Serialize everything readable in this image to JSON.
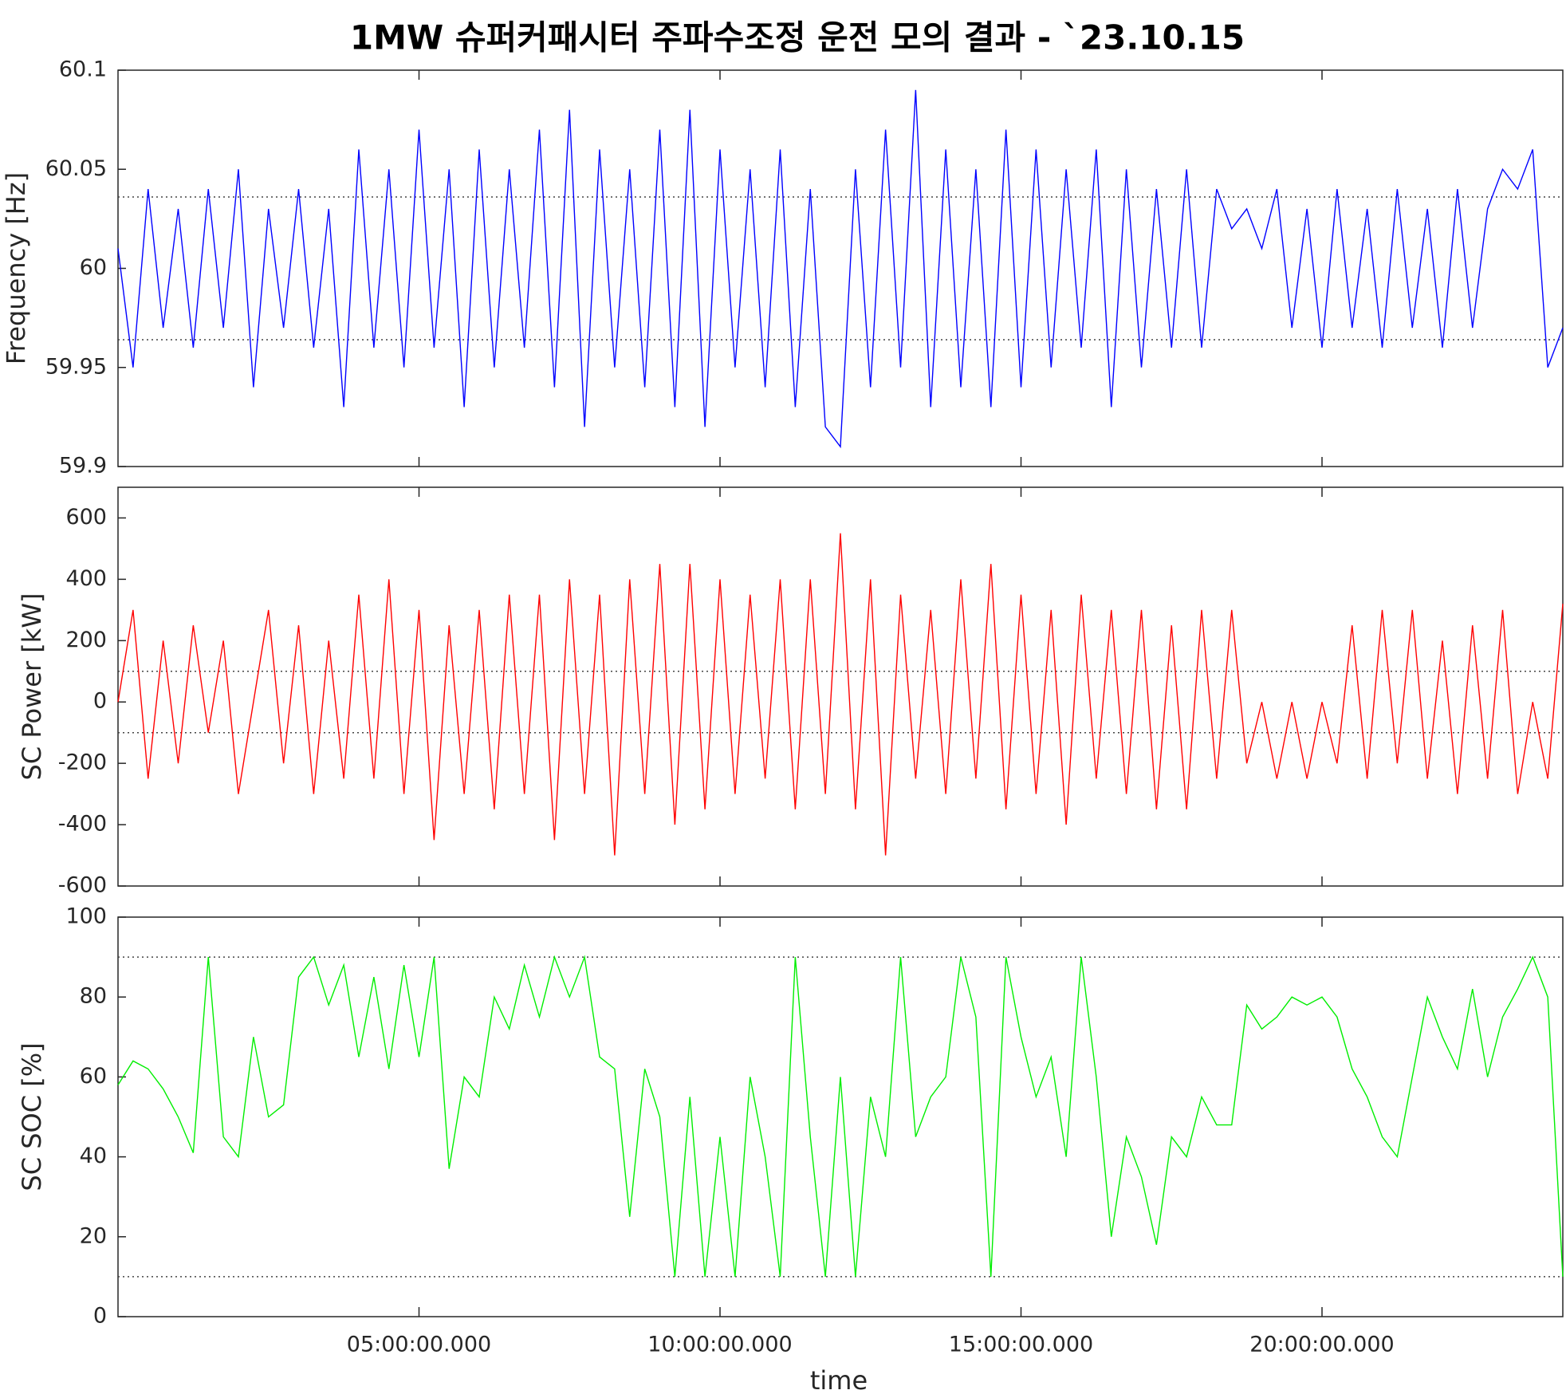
{
  "chart_data": [
    {
      "type": "line",
      "title": "1MW 슈퍼커패시터 주파수조정 운전 모의 결과 - `23.10.15",
      "ylabel": "Frequency [Hz]",
      "xlim": [
        0,
        24
      ],
      "xticks": [
        5,
        10,
        15,
        20
      ],
      "ylim": [
        59.9,
        60.1
      ],
      "yticks": [
        59.9,
        59.95,
        60,
        60.05,
        60.1
      ],
      "hlines": [
        60.036,
        59.964
      ],
      "x": [
        0,
        0.25,
        0.5,
        0.75,
        1,
        1.25,
        1.5,
        1.75,
        2,
        2.25,
        2.5,
        2.75,
        3,
        3.25,
        3.5,
        3.75,
        4,
        4.25,
        4.5,
        4.75,
        5,
        5.25,
        5.5,
        5.75,
        6,
        6.25,
        6.5,
        6.75,
        7,
        7.25,
        7.5,
        7.75,
        8,
        8.25,
        8.5,
        8.75,
        9,
        9.25,
        9.5,
        9.75,
        10,
        10.25,
        10.5,
        10.75,
        11,
        11.25,
        11.5,
        11.75,
        12,
        12.25,
        12.5,
        12.75,
        13,
        13.25,
        13.5,
        13.75,
        14,
        14.25,
        14.5,
        14.75,
        15,
        15.25,
        15.5,
        15.75,
        16,
        16.25,
        16.5,
        16.75,
        17,
        17.25,
        17.5,
        17.75,
        18,
        18.25,
        18.5,
        18.75,
        19,
        19.25,
        19.5,
        19.75,
        20,
        20.25,
        20.5,
        20.75,
        21,
        21.25,
        21.5,
        21.75,
        22,
        22.25,
        22.5,
        22.75,
        23,
        23.25,
        23.5,
        23.75,
        24
      ],
      "series": [
        {
          "color": "#0000ff",
          "values": [
            60.01,
            59.95,
            60.04,
            59.97,
            60.03,
            59.96,
            60.04,
            59.97,
            60.05,
            59.94,
            60.03,
            59.97,
            60.04,
            59.96,
            60.03,
            59.93,
            60.06,
            59.96,
            60.05,
            59.95,
            60.07,
            59.96,
            60.05,
            59.93,
            60.06,
            59.95,
            60.05,
            59.96,
            60.07,
            59.94,
            60.08,
            59.92,
            60.06,
            59.95,
            60.05,
            59.94,
            60.07,
            59.93,
            60.08,
            59.92,
            60.06,
            59.95,
            60.05,
            59.94,
            60.06,
            59.93,
            60.04,
            59.92,
            59.91,
            60.05,
            59.94,
            60.07,
            59.95,
            60.09,
            59.93,
            60.06,
            59.94,
            60.05,
            59.93,
            60.07,
            59.94,
            60.06,
            59.95,
            60.05,
            59.96,
            60.06,
            59.93,
            60.05,
            59.95,
            60.04,
            59.96,
            60.05,
            59.96,
            60.04,
            60.02,
            60.03,
            60.01,
            60.04,
            59.97,
            60.03,
            59.96,
            60.04,
            59.97,
            60.03,
            59.96,
            60.04,
            59.97,
            60.03,
            59.96,
            60.04,
            59.97,
            60.03,
            60.05,
            60.04,
            60.06,
            59.95,
            59.97
          ]
        }
      ]
    },
    {
      "type": "line",
      "ylabel": "SC Power [kW]",
      "xlim": [
        0,
        24
      ],
      "xticks": [
        5,
        10,
        15,
        20
      ],
      "ylim": [
        -600,
        700
      ],
      "yticks": [
        -600,
        -400,
        -200,
        0,
        200,
        400,
        600
      ],
      "hlines": [
        100,
        -100
      ],
      "x": [
        0,
        0.25,
        0.5,
        0.75,
        1,
        1.25,
        1.5,
        1.75,
        2,
        2.25,
        2.5,
        2.75,
        3,
        3.25,
        3.5,
        3.75,
        4,
        4.25,
        4.5,
        4.75,
        5,
        5.25,
        5.5,
        5.75,
        6,
        6.25,
        6.5,
        6.75,
        7,
        7.25,
        7.5,
        7.75,
        8,
        8.25,
        8.5,
        8.75,
        9,
        9.25,
        9.5,
        9.75,
        10,
        10.25,
        10.5,
        10.75,
        11,
        11.25,
        11.5,
        11.75,
        12,
        12.25,
        12.5,
        12.75,
        13,
        13.25,
        13.5,
        13.75,
        14,
        14.25,
        14.5,
        14.75,
        15,
        15.25,
        15.5,
        15.75,
        16,
        16.25,
        16.5,
        16.75,
        17,
        17.25,
        17.5,
        17.75,
        18,
        18.25,
        18.5,
        18.75,
        19,
        19.25,
        19.5,
        19.75,
        20,
        20.25,
        20.5,
        20.75,
        21,
        21.25,
        21.5,
        21.75,
        22,
        22.25,
        22.5,
        22.75,
        23,
        23.25,
        23.5,
        23.75,
        24
      ],
      "series": [
        {
          "color": "#ff0000",
          "values": [
            0,
            300,
            -250,
            200,
            -200,
            250,
            -100,
            200,
            -300,
            0,
            300,
            -200,
            250,
            -300,
            200,
            -250,
            350,
            -250,
            400,
            -300,
            300,
            -450,
            250,
            -300,
            300,
            -350,
            350,
            -300,
            350,
            -450,
            400,
            -300,
            350,
            -500,
            400,
            -300,
            450,
            -400,
            450,
            -350,
            400,
            -300,
            350,
            -250,
            400,
            -350,
            400,
            -300,
            550,
            -350,
            400,
            -500,
            350,
            -250,
            300,
            -300,
            400,
            -250,
            450,
            -350,
            350,
            -300,
            300,
            -400,
            350,
            -250,
            300,
            -300,
            300,
            -350,
            250,
            -350,
            300,
            -250,
            300,
            -200,
            0,
            -250,
            0,
            -250,
            0,
            -200,
            250,
            -250,
            300,
            -200,
            300,
            -250,
            200,
            -300,
            250,
            -250,
            300,
            -300,
            0,
            -250,
            320
          ]
        }
      ]
    },
    {
      "type": "line",
      "ylabel": "SC SOC [%]",
      "xlabel": "time",
      "xlim": [
        0,
        24
      ],
      "xticks": [
        {
          "value": 5,
          "label": "05:00:00.000"
        },
        {
          "value": 10,
          "label": "10:00:00.000"
        },
        {
          "value": 15,
          "label": "15:00:00.000"
        },
        {
          "value": 20,
          "label": "20:00:00.000"
        }
      ],
      "ylim": [
        0,
        100
      ],
      "yticks": [
        0,
        20,
        40,
        60,
        80,
        100
      ],
      "hlines": [
        90,
        10
      ],
      "x": [
        0,
        0.25,
        0.5,
        0.75,
        1,
        1.25,
        1.5,
        1.75,
        2,
        2.25,
        2.5,
        2.75,
        3,
        3.25,
        3.5,
        3.75,
        4,
        4.25,
        4.5,
        4.75,
        5,
        5.25,
        5.5,
        5.75,
        6,
        6.25,
        6.5,
        6.75,
        7,
        7.25,
        7.5,
        7.75,
        8,
        8.25,
        8.5,
        8.75,
        9,
        9.25,
        9.5,
        9.75,
        10,
        10.25,
        10.5,
        10.75,
        11,
        11.25,
        11.5,
        11.75,
        12,
        12.25,
        12.5,
        12.75,
        13,
        13.25,
        13.5,
        13.75,
        14,
        14.25,
        14.5,
        14.75,
        15,
        15.25,
        15.5,
        15.75,
        16,
        16.25,
        16.5,
        16.75,
        17,
        17.25,
        17.5,
        17.75,
        18,
        18.25,
        18.5,
        18.75,
        19,
        19.25,
        19.5,
        19.75,
        20,
        20.25,
        20.5,
        20.75,
        21,
        21.25,
        21.5,
        21.75,
        22,
        22.25,
        22.5,
        22.75,
        23,
        23.25,
        23.5,
        23.75,
        24
      ],
      "series": [
        {
          "color": "#00ee00",
          "values": [
            58,
            64,
            62,
            57,
            50,
            41,
            90,
            45,
            40,
            70,
            50,
            53,
            85,
            90,
            78,
            88,
            65,
            85,
            62,
            88,
            65,
            90,
            37,
            60,
            55,
            80,
            72,
            88,
            75,
            90,
            80,
            90,
            65,
            62,
            25,
            62,
            50,
            10,
            55,
            10,
            45,
            10,
            60,
            40,
            10,
            90,
            45,
            10,
            60,
            10,
            55,
            40,
            90,
            45,
            55,
            60,
            90,
            75,
            10,
            90,
            70,
            55,
            65,
            40,
            90,
            60,
            20,
            45,
            35,
            18,
            45,
            40,
            55,
            48,
            48,
            78,
            72,
            75,
            80,
            78,
            80,
            75,
            62,
            55,
            45,
            40,
            60,
            80,
            70,
            62,
            82,
            60,
            75,
            82,
            90,
            80,
            10
          ]
        }
      ]
    }
  ]
}
